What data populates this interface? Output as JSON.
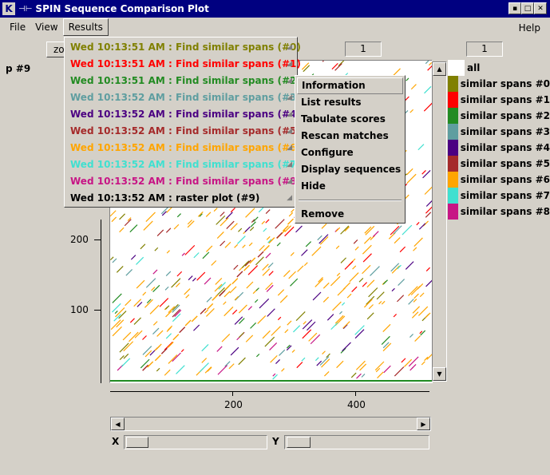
{
  "window": {
    "app_icon": "K",
    "title": "SPIN Sequence Comparison Plot",
    "title_arrow": "⊣⊢"
  },
  "menubar": {
    "file": "File",
    "view": "View",
    "results": "Results",
    "help": "Help"
  },
  "toolbar": {
    "zoom_label": "zo",
    "entry1": "1",
    "entry2": "1"
  },
  "plot_label": "p #9",
  "results_menu": [
    {
      "text": "Wed 10:13:51 AM : Find similar spans (#0)",
      "color": "#808000"
    },
    {
      "text": "Wed 10:13:51 AM : Find similar spans (#1)",
      "color": "#ff0000"
    },
    {
      "text": "Wed 10:13:51 AM : Find similar spans (#2)",
      "color": "#228b22"
    },
    {
      "text": "Wed 10:13:52 AM : Find similar spans (#3)",
      "color": "#5f9ea0"
    },
    {
      "text": "Wed 10:13:52 AM : Find similar spans (#4)",
      "color": "#4b0082"
    },
    {
      "text": "Wed 10:13:52 AM : Find similar spans (#5)",
      "color": "#a52a2a"
    },
    {
      "text": "Wed 10:13:52 AM : Find similar spans (#6)",
      "color": "#ffa500"
    },
    {
      "text": "Wed 10:13:52 AM : Find similar spans (#7)",
      "color": "#40e0d0"
    },
    {
      "text": "Wed 10:13:52 AM : Find similar spans (#8)",
      "color": "#c71585"
    },
    {
      "text": "Wed 10:13:52 AM : raster plot (#9)",
      "color": "#000000"
    }
  ],
  "submenu": {
    "information": "Information",
    "list_results": "List results",
    "tabulate_scores": "Tabulate scores",
    "rescan_matches": "Rescan matches",
    "configure": "Configure",
    "display_sequences": "Display sequences",
    "hide": "Hide",
    "remove": "Remove"
  },
  "legend": [
    {
      "label": "all",
      "color": "#ffffff"
    },
    {
      "label": "similar spans #0",
      "color": "#808000"
    },
    {
      "label": "similar spans #1",
      "color": "#ff0000"
    },
    {
      "label": "similar spans #2",
      "color": "#228b22"
    },
    {
      "label": "similar spans #3",
      "color": "#5f9ea0"
    },
    {
      "label": "similar spans #4",
      "color": "#4b0082"
    },
    {
      "label": "similar spans #5",
      "color": "#a52a2a"
    },
    {
      "label": "similar spans #6",
      "color": "#ffa500"
    },
    {
      "label": "similar spans #7",
      "color": "#40e0d0"
    },
    {
      "label": "similar spans #8",
      "color": "#c71585"
    }
  ],
  "axes": {
    "y_ticks": [
      "200",
      "100"
    ],
    "x_ticks": [
      "200",
      "400"
    ]
  },
  "scroll": {
    "x_label": "X",
    "y_label": "Y"
  }
}
